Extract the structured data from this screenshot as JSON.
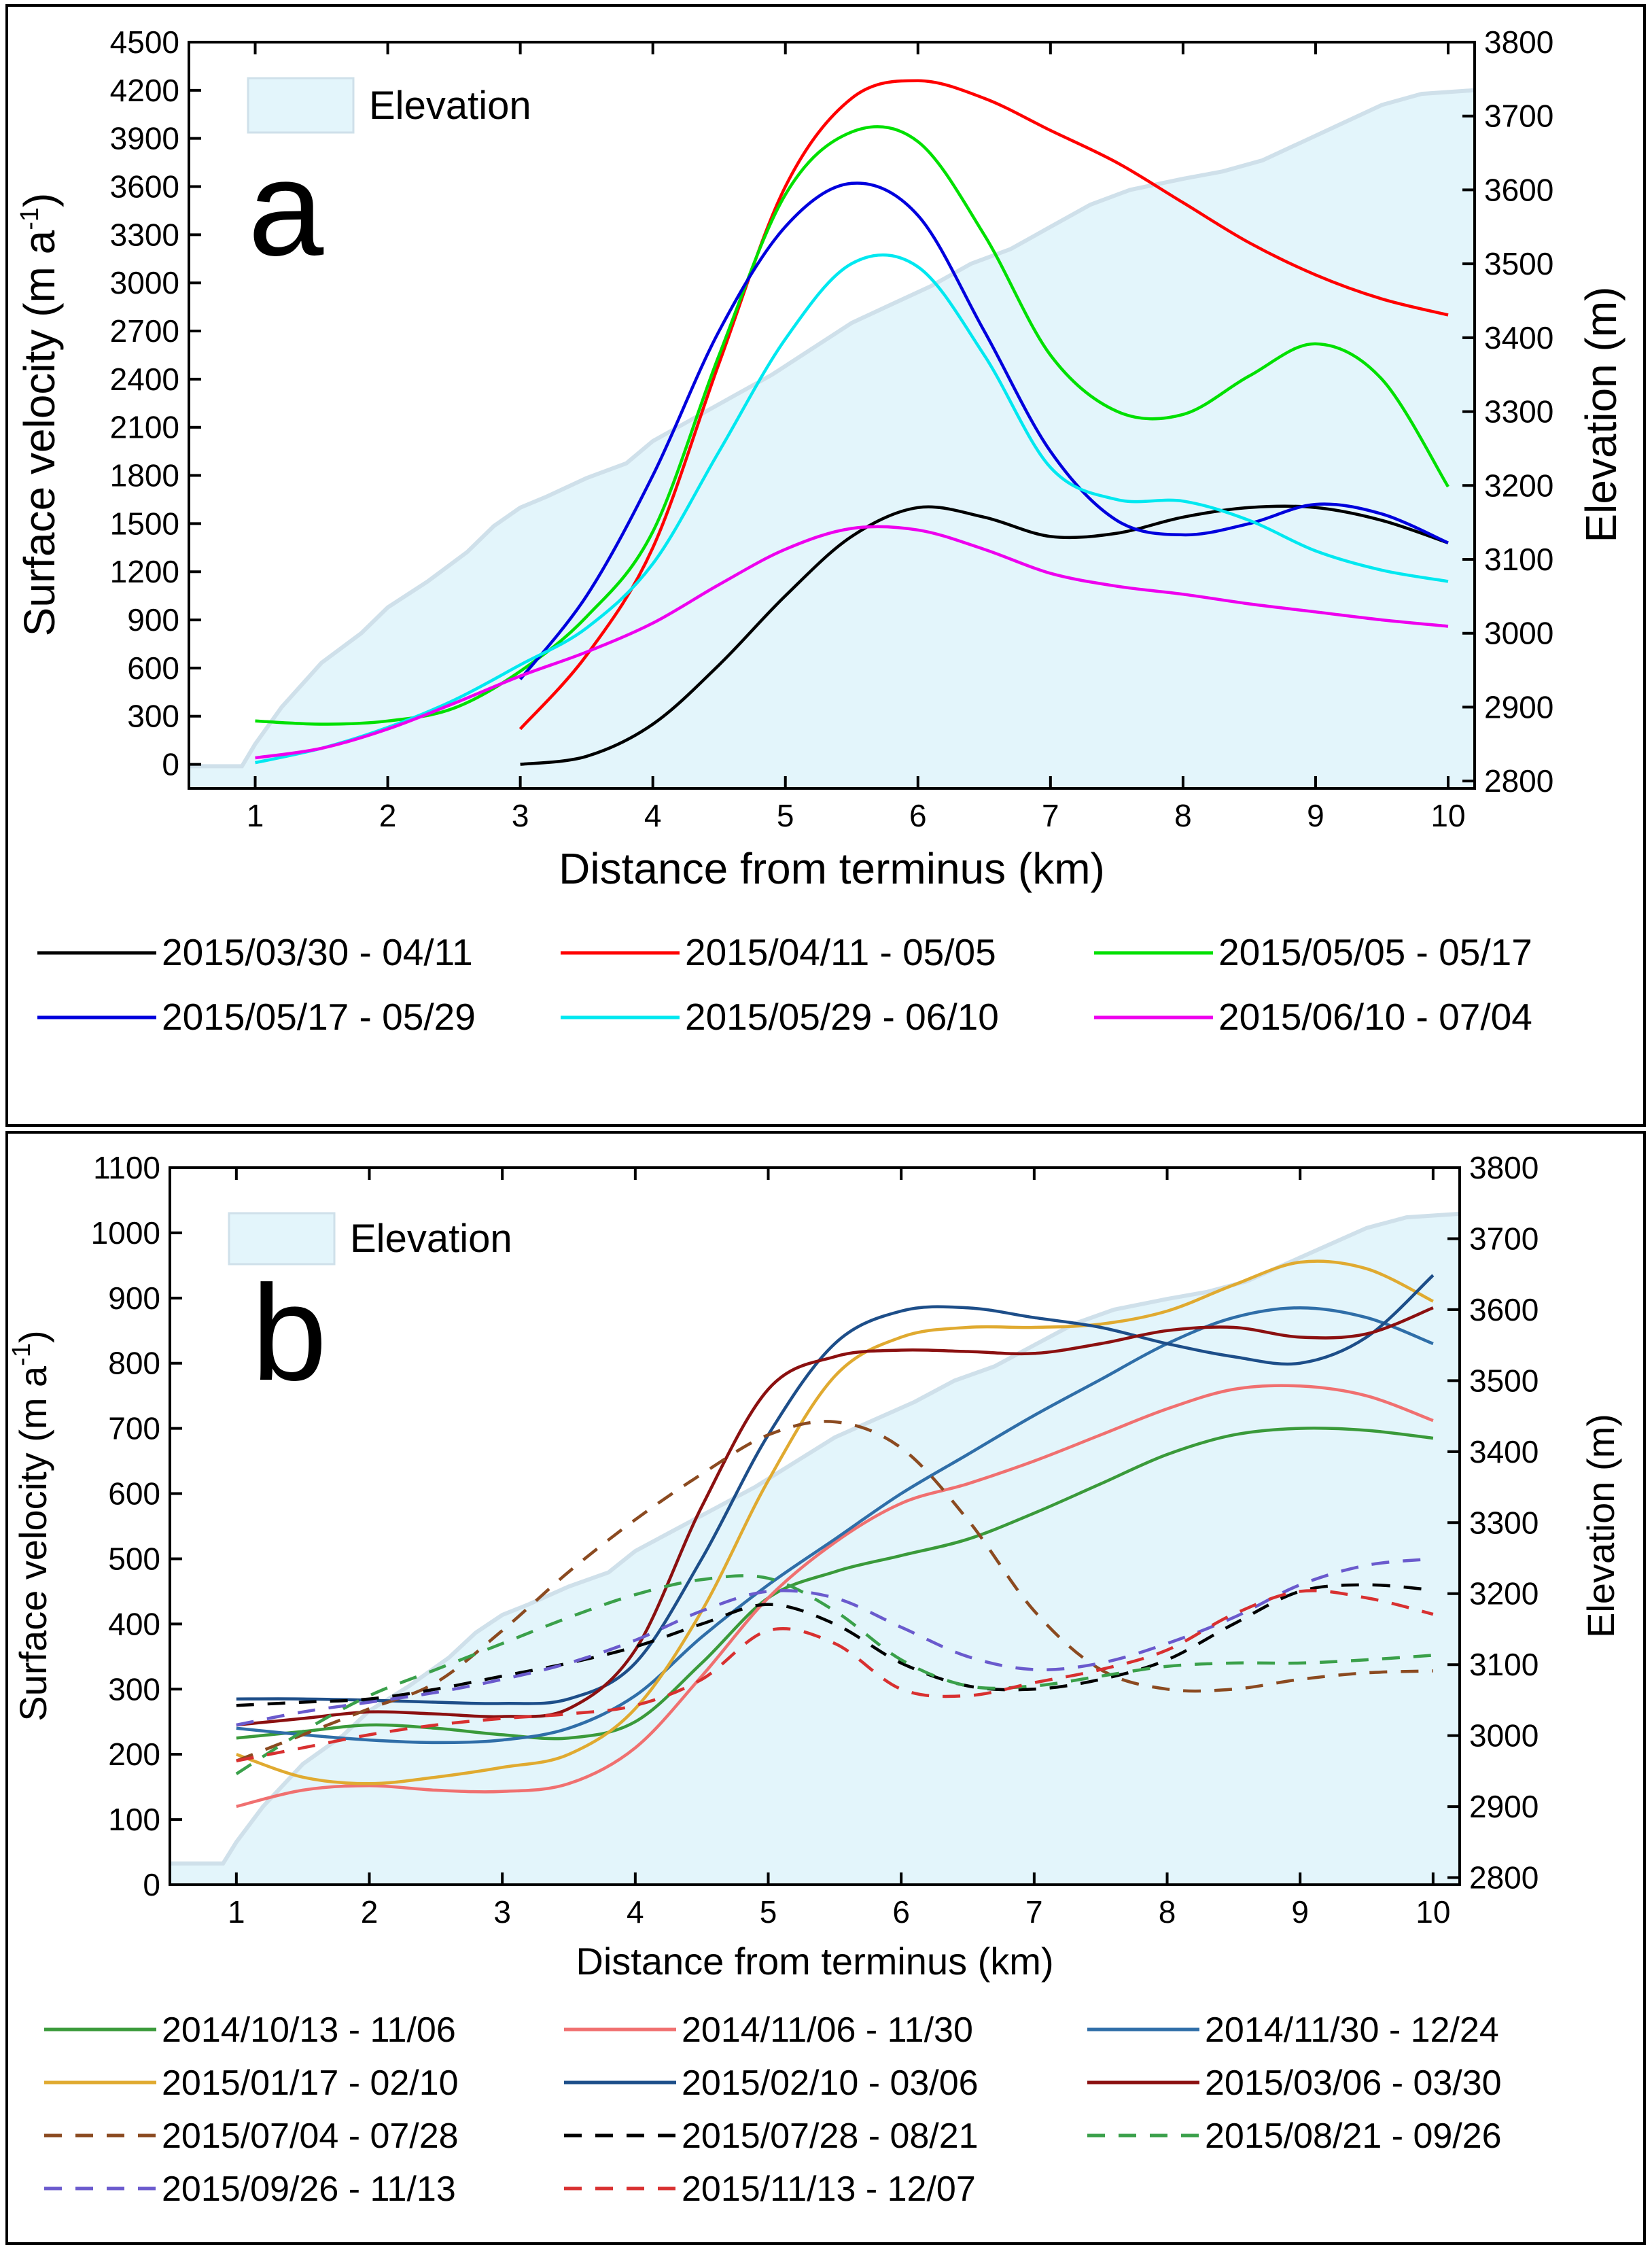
{
  "chart_data": [
    {
      "panel": "a",
      "type": "line",
      "xlabel": "Distance from terminus (km)",
      "ylabel": "Surface velocity (m a",
      "ylabel_sup": "-1",
      "ylabel_close": ")",
      "y2label": "Elevation (m)",
      "xlim": [
        0.5,
        10.2
      ],
      "ylim": [
        -150,
        4500
      ],
      "y2lim": [
        2790,
        3800
      ],
      "xticks": [
        "1",
        "2",
        "3",
        "4",
        "5",
        "6",
        "7",
        "8",
        "9",
        "10"
      ],
      "xtick_values": [
        1,
        2,
        3,
        4,
        5,
        6,
        7,
        8,
        9,
        10
      ],
      "yticks": [
        "0",
        "300",
        "600",
        "900",
        "1200",
        "1500",
        "1800",
        "2100",
        "2400",
        "2700",
        "3000",
        "3300",
        "3600",
        "3900",
        "4200",
        "4500"
      ],
      "ytick_values": [
        0,
        300,
        600,
        900,
        1200,
        1500,
        1800,
        2100,
        2400,
        2700,
        3000,
        3300,
        3600,
        3900,
        4200,
        4500
      ],
      "y2ticks": [
        "2800",
        "2900",
        "3000",
        "3100",
        "3200",
        "3300",
        "3400",
        "3500",
        "3600",
        "3700",
        "3800"
      ],
      "y2tick_values": [
        2800,
        2900,
        3000,
        3100,
        3200,
        3300,
        3400,
        3500,
        3600,
        3700,
        3800
      ],
      "elevation_legend": "Elevation",
      "panel_label": "a",
      "elevation": {
        "x": [
          0.5,
          0.9,
          1.0,
          1.2,
          1.5,
          1.8,
          2.0,
          2.3,
          2.6,
          2.8,
          3.0,
          3.2,
          3.5,
          3.8,
          4.0,
          4.3,
          4.6,
          4.9,
          5.2,
          5.5,
          5.8,
          6.1,
          6.4,
          6.7,
          7.0,
          7.3,
          7.6,
          8.0,
          8.3,
          8.6,
          8.9,
          9.2,
          9.5,
          9.8,
          10.2
        ],
        "y": [
          2820,
          2820,
          2850,
          2900,
          2960,
          3000,
          3035,
          3070,
          3110,
          3145,
          3170,
          3185,
          3210,
          3230,
          3260,
          3290,
          3320,
          3350,
          3385,
          3420,
          3445,
          3470,
          3500,
          3520,
          3550,
          3580,
          3600,
          3615,
          3625,
          3640,
          3665,
          3690,
          3715,
          3730,
          3735
        ]
      },
      "series": [
        {
          "name": "2015/03/30 - 04/11",
          "color": "#000000",
          "dash": false,
          "x": [
            3.0,
            3.5,
            4.0,
            4.5,
            5.0,
            5.5,
            6.0,
            6.5,
            7.0,
            7.5,
            8.0,
            8.5,
            9.0,
            9.5,
            10.0
          ],
          "y": [
            0,
            50,
            250,
            620,
            1050,
            1420,
            1600,
            1540,
            1420,
            1440,
            1540,
            1600,
            1600,
            1520,
            1380
          ]
        },
        {
          "name": "2015/04/11 - 05/05",
          "color": "#ff0000",
          "dash": false,
          "x": [
            3.0,
            3.5,
            4.0,
            4.5,
            5.0,
            5.5,
            6.0,
            6.5,
            7.0,
            7.5,
            8.0,
            8.5,
            9.0,
            9.5,
            10.0
          ],
          "y": [
            220,
            680,
            1350,
            2500,
            3600,
            4150,
            4260,
            4150,
            3950,
            3750,
            3500,
            3250,
            3050,
            2900,
            2800
          ]
        },
        {
          "name": "2015/05/05 - 05/17",
          "color": "#00e000",
          "dash": false,
          "x": [
            1.0,
            1.5,
            2.0,
            2.5,
            3.0,
            3.5,
            4.0,
            4.5,
            5.0,
            5.5,
            6.0,
            6.5,
            7.0,
            7.5,
            8.0,
            8.5,
            9.0,
            9.5,
            10.0
          ],
          "y": [
            270,
            250,
            270,
            350,
            580,
            920,
            1450,
            2550,
            3550,
            3940,
            3880,
            3300,
            2550,
            2200,
            2180,
            2420,
            2620,
            2400,
            1730
          ]
        },
        {
          "name": "2015/05/17 - 05/29",
          "color": "#0000dd",
          "dash": false,
          "x": [
            3.0,
            3.5,
            4.0,
            4.5,
            5.0,
            5.5,
            6.0,
            6.5,
            7.0,
            7.5,
            8.0,
            8.5,
            9.0,
            9.5,
            10.0
          ],
          "y": [
            530,
            1050,
            1800,
            2700,
            3350,
            3620,
            3420,
            2700,
            1950,
            1520,
            1430,
            1500,
            1620,
            1560,
            1380
          ]
        },
        {
          "name": "2015/05/29 - 06/10",
          "color": "#00e8f0",
          "dash": false,
          "x": [
            1.0,
            1.5,
            2.0,
            2.5,
            3.0,
            3.5,
            4.0,
            4.5,
            5.0,
            5.5,
            6.0,
            6.5,
            7.0,
            7.5,
            8.0,
            8.5,
            9.0,
            9.5,
            10.0
          ],
          "y": [
            10,
            100,
            230,
            400,
            620,
            850,
            1250,
            1950,
            2650,
            3120,
            3100,
            2550,
            1850,
            1650,
            1640,
            1520,
            1330,
            1210,
            1140
          ]
        },
        {
          "name": "2015/06/10 - 07/04",
          "color": "#ee00ee",
          "dash": false,
          "x": [
            1.0,
            1.5,
            2.0,
            2.5,
            3.0,
            3.5,
            4.0,
            4.5,
            5.0,
            5.5,
            6.0,
            6.5,
            7.0,
            7.5,
            8.0,
            8.5,
            9.0,
            9.5,
            10.0
          ],
          "y": [
            40,
            100,
            220,
            380,
            550,
            700,
            880,
            1120,
            1340,
            1470,
            1460,
            1340,
            1190,
            1110,
            1060,
            1000,
            950,
            900,
            860
          ]
        }
      ]
    },
    {
      "panel": "b",
      "type": "line",
      "xlabel": "Distance from terminus (km)",
      "ylabel": "Surface velocity (m a",
      "ylabel_sup": "-1",
      "ylabel_close": ")",
      "y2label": "Elevation (m)",
      "xlim": [
        0.5,
        10.2
      ],
      "ylim": [
        0,
        1100
      ],
      "y2lim": [
        2790,
        3800
      ],
      "xticks": [
        "1",
        "2",
        "3",
        "4",
        "5",
        "6",
        "7",
        "8",
        "9",
        "10"
      ],
      "xtick_values": [
        1,
        2,
        3,
        4,
        5,
        6,
        7,
        8,
        9,
        10
      ],
      "yticks": [
        "0",
        "100",
        "200",
        "300",
        "400",
        "500",
        "600",
        "700",
        "800",
        "900",
        "1000",
        "1100"
      ],
      "ytick_values": [
        0,
        100,
        200,
        300,
        400,
        500,
        600,
        700,
        800,
        900,
        1000,
        1100
      ],
      "y2ticks": [
        "2800",
        "2900",
        "3000",
        "3100",
        "3200",
        "3300",
        "3400",
        "3500",
        "3600",
        "3700",
        "3800"
      ],
      "y2tick_values": [
        2800,
        2900,
        3000,
        3100,
        3200,
        3300,
        3400,
        3500,
        3600,
        3700,
        3800
      ],
      "elevation_legend": "Elevation",
      "panel_label": "b",
      "elevation": {
        "x": [
          0.5,
          0.9,
          1.0,
          1.2,
          1.5,
          1.8,
          2.0,
          2.3,
          2.6,
          2.8,
          3.0,
          3.2,
          3.5,
          3.8,
          4.0,
          4.3,
          4.6,
          4.9,
          5.2,
          5.5,
          5.8,
          6.1,
          6.4,
          6.7,
          7.0,
          7.3,
          7.6,
          8.0,
          8.3,
          8.6,
          8.9,
          9.2,
          9.5,
          9.8,
          10.2
        ],
        "y": [
          2820,
          2820,
          2850,
          2900,
          2960,
          3000,
          3035,
          3070,
          3110,
          3145,
          3170,
          3185,
          3210,
          3230,
          3260,
          3290,
          3320,
          3350,
          3385,
          3420,
          3445,
          3470,
          3500,
          3520,
          3550,
          3580,
          3600,
          3615,
          3625,
          3640,
          3665,
          3690,
          3715,
          3730,
          3735
        ]
      },
      "series": [
        {
          "name": "2014/10/13 - 11/06",
          "color": "#3a9a3a",
          "dash": false,
          "x": [
            1.0,
            1.5,
            2.0,
            2.5,
            3.0,
            3.5,
            4.0,
            4.5,
            5.0,
            5.5,
            6.0,
            6.5,
            7.0,
            7.5,
            8.0,
            8.5,
            9.0,
            9.5,
            10.0
          ],
          "y": [
            225,
            235,
            245,
            240,
            230,
            225,
            250,
            340,
            440,
            480,
            505,
            530,
            570,
            615,
            660,
            690,
            700,
            697,
            685
          ]
        },
        {
          "name": "2014/11/06 - 11/30",
          "color": "#f07070",
          "dash": false,
          "x": [
            1.0,
            1.5,
            2.0,
            2.5,
            3.0,
            3.5,
            4.0,
            4.5,
            5.0,
            5.5,
            6.0,
            6.5,
            7.0,
            7.5,
            8.0,
            8.5,
            9.0,
            9.5,
            10.0
          ],
          "y": [
            120,
            145,
            152,
            145,
            143,
            155,
            210,
            320,
            440,
            525,
            585,
            615,
            650,
            690,
            730,
            760,
            765,
            750,
            712
          ]
        },
        {
          "name": "2014/11/30 - 12/24",
          "color": "#2f6ea8",
          "dash": false,
          "x": [
            1.0,
            1.5,
            2.0,
            2.5,
            3.0,
            3.5,
            4.0,
            4.5,
            5.0,
            5.5,
            6.0,
            6.5,
            7.0,
            7.5,
            8.0,
            8.5,
            9.0,
            9.5,
            10.0
          ],
          "y": [
            240,
            230,
            222,
            218,
            222,
            240,
            290,
            380,
            460,
            530,
            600,
            660,
            720,
            775,
            830,
            870,
            885,
            870,
            830
          ]
        },
        {
          "name": "2015/01/17 - 02/10",
          "color": "#e0aa30",
          "dash": false,
          "x": [
            1.0,
            1.5,
            2.0,
            2.5,
            3.0,
            3.5,
            4.0,
            4.5,
            5.0,
            5.5,
            6.0,
            6.5,
            7.0,
            7.5,
            8.0,
            8.5,
            9.0,
            9.5,
            10.0
          ],
          "y": [
            200,
            165,
            155,
            165,
            180,
            200,
            270,
            420,
            620,
            780,
            840,
            855,
            855,
            860,
            880,
            920,
            955,
            945,
            895
          ]
        },
        {
          "name": "2015/02/10 - 03/06",
          "color": "#1d4e89",
          "dash": false,
          "x": [
            1.0,
            1.5,
            2.0,
            2.5,
            3.0,
            3.5,
            4.0,
            4.5,
            5.0,
            5.5,
            6.0,
            6.5,
            7.0,
            7.5,
            8.0,
            8.5,
            9.0,
            9.5,
            10.0
          ],
          "y": [
            285,
            285,
            283,
            280,
            278,
            285,
            340,
            500,
            690,
            830,
            880,
            885,
            870,
            855,
            830,
            810,
            800,
            840,
            935
          ]
        },
        {
          "name": "2015/03/06 - 03/30",
          "color": "#8b1010",
          "dash": false,
          "x": [
            1.0,
            1.5,
            2.0,
            2.5,
            3.0,
            3.5,
            4.0,
            4.5,
            5.0,
            5.5,
            6.0,
            6.5,
            7.0,
            7.5,
            8.0,
            8.5,
            9.0,
            9.5,
            10.0
          ],
          "y": [
            245,
            255,
            265,
            262,
            258,
            270,
            360,
            580,
            760,
            810,
            820,
            818,
            815,
            830,
            850,
            855,
            840,
            845,
            885
          ]
        },
        {
          "name": "2015/07/04 - 07/28",
          "color": "#8b4a20",
          "dash": true,
          "x": [
            1.0,
            1.5,
            2.0,
            2.5,
            3.0,
            3.5,
            4.0,
            4.5,
            5.0,
            5.5,
            6.0,
            6.5,
            7.0,
            7.5,
            8.0,
            8.5,
            9.0,
            9.5,
            10.0
          ],
          "y": [
            190,
            230,
            270,
            310,
            390,
            480,
            560,
            630,
            690,
            710,
            670,
            560,
            420,
            330,
            300,
            300,
            315,
            325,
            328
          ]
        },
        {
          "name": "2015/07/28 - 08/21",
          "color": "#000000",
          "dash": true,
          "x": [
            1.0,
            1.5,
            2.0,
            2.5,
            3.0,
            3.5,
            4.0,
            4.5,
            5.0,
            5.5,
            6.0,
            6.5,
            7.0,
            7.5,
            8.0,
            8.5,
            9.0,
            9.5,
            10.0
          ],
          "y": [
            275,
            280,
            285,
            300,
            320,
            340,
            365,
            400,
            430,
            400,
            340,
            305,
            300,
            315,
            345,
            400,
            450,
            460,
            452
          ]
        },
        {
          "name": "2015/08/21 - 09/26",
          "color": "#3aa04a",
          "dash": true,
          "x": [
            1.0,
            1.5,
            2.0,
            2.5,
            3.0,
            3.5,
            4.0,
            4.5,
            5.0,
            5.5,
            6.0,
            6.5,
            7.0,
            7.5,
            8.0,
            8.5,
            9.0,
            9.5,
            10.0
          ],
          "y": [
            170,
            235,
            290,
            330,
            370,
            410,
            445,
            468,
            470,
            420,
            345,
            305,
            305,
            320,
            335,
            340,
            340,
            345,
            352
          ]
        },
        {
          "name": "2015/09/26 - 11/13",
          "color": "#6a5acd",
          "dash": true,
          "x": [
            1.0,
            1.5,
            2.0,
            2.5,
            3.0,
            3.5,
            4.0,
            4.5,
            5.0,
            5.5,
            6.0,
            6.5,
            7.0,
            7.5,
            8.0,
            8.5,
            9.0,
            9.5,
            10.0
          ],
          "y": [
            245,
            265,
            280,
            295,
            315,
            340,
            375,
            420,
            450,
            440,
            395,
            350,
            330,
            340,
            370,
            410,
            460,
            490,
            500
          ]
        },
        {
          "name": "2015/11/13 - 12/07",
          "color": "#d83030",
          "dash": true,
          "x": [
            1.0,
            1.5,
            2.0,
            2.5,
            3.0,
            3.5,
            4.0,
            4.5,
            5.0,
            5.5,
            6.0,
            6.5,
            7.0,
            7.5,
            8.0,
            8.5,
            9.0,
            9.5,
            10.0
          ],
          "y": [
            190,
            210,
            230,
            245,
            255,
            262,
            275,
            315,
            390,
            370,
            300,
            290,
            310,
            330,
            360,
            415,
            450,
            440,
            415
          ]
        }
      ]
    }
  ]
}
